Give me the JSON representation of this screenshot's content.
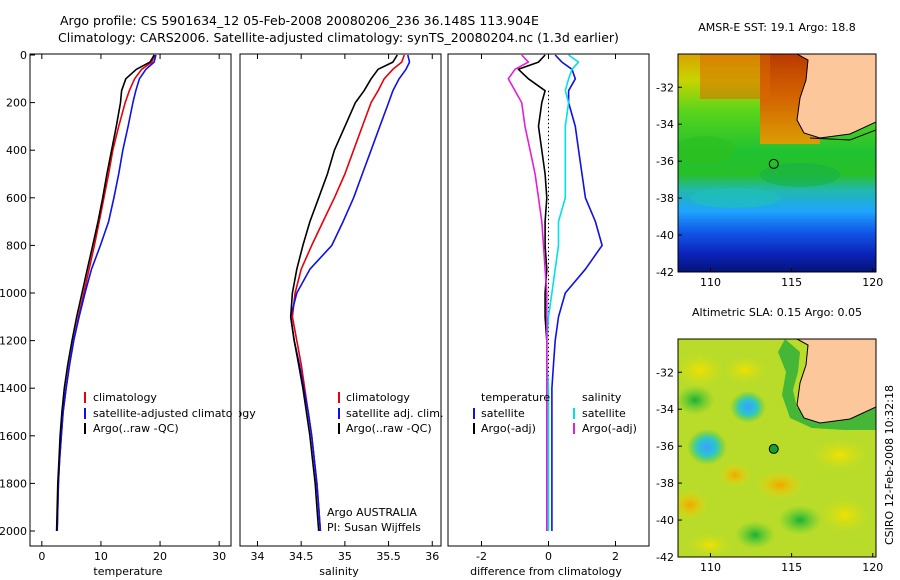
{
  "header": {
    "line1": "Argo profile: CS 5901634_12 05-Feb-2008 20080206_236 36.148S 113.904E",
    "line2": "Climatology: CARS2006. Satellite-adjusted climatology: synTS_20080204.nc (1.3d earlier)"
  },
  "side_text": "CSIRO 12-Feb-2008 10:32:18",
  "chart_data": [
    {
      "type": "line",
      "id": "temperature",
      "xlabel": "temperature",
      "ylabel": "",
      "xlim": [
        -2,
        32
      ],
      "ylim": [
        0,
        2060
      ],
      "y_reversed": true,
      "xticks": [
        0,
        10,
        20,
        30
      ],
      "yticks": [
        0,
        200,
        400,
        600,
        800,
        1000,
        1200,
        1400,
        1600,
        1800,
        2000
      ],
      "series": [
        {
          "name": "climatology",
          "color": "#e8000b",
          "x": [
            19.1,
            18.6,
            16.9,
            15.7,
            14.8,
            14.1,
            13.0,
            12.0,
            11.3,
            10.5,
            9.7,
            8.9,
            8.0,
            7.1,
            6.2,
            5.4,
            4.7,
            4.1,
            3.6,
            3.3,
            3.0,
            2.8,
            2.7,
            2.6
          ],
          "y": [
            0,
            30,
            60,
            100,
            150,
            200,
            300,
            400,
            500,
            600,
            700,
            800,
            900,
            1000,
            1100,
            1200,
            1300,
            1400,
            1500,
            1600,
            1700,
            1800,
            1900,
            2000
          ]
        },
        {
          "name": "satellite-adjusted climatology",
          "color": "#1010e8",
          "x": [
            19.3,
            19.0,
            17.6,
            16.5,
            15.9,
            15.4,
            14.6,
            13.7,
            13.0,
            12.2,
            11.3,
            9.9,
            8.4,
            7.3,
            6.3,
            5.4,
            4.7,
            4.1,
            3.6,
            3.3,
            3.0,
            2.8,
            2.7,
            2.6
          ],
          "y": [
            0,
            30,
            60,
            100,
            150,
            200,
            300,
            400,
            500,
            600,
            700,
            800,
            900,
            1000,
            1100,
            1200,
            1300,
            1400,
            1500,
            1600,
            1700,
            1800,
            1900,
            2000
          ]
        },
        {
          "name": "Argo(..raw -QC)",
          "color": "#000000",
          "x": [
            19.0,
            18.3,
            16.0,
            14.2,
            13.5,
            13.3,
            12.6,
            11.8,
            11.0,
            10.3,
            9.5,
            8.6,
            7.7,
            6.8,
            5.9,
            5.1,
            4.4,
            3.8,
            3.4,
            3.1,
            2.9,
            2.7,
            2.6,
            2.5
          ],
          "y": [
            0,
            30,
            60,
            100,
            150,
            200,
            300,
            400,
            500,
            600,
            700,
            800,
            900,
            1000,
            1100,
            1200,
            1300,
            1400,
            1500,
            1600,
            1700,
            1800,
            1900,
            2000
          ]
        }
      ],
      "legend_position": "bottom-right",
      "legend": [
        "climatology",
        "satellite-adjusted climatology",
        "Argo(..raw -QC)"
      ]
    },
    {
      "type": "line",
      "id": "salinity",
      "xlabel": "salinity",
      "ylabel": "",
      "xlim": [
        33.8,
        36.1
      ],
      "ylim": [
        0,
        2060
      ],
      "y_reversed": true,
      "xticks": [
        34,
        34.5,
        35,
        35.5,
        36
      ],
      "yticks": [],
      "series": [
        {
          "name": "climatology",
          "color": "#e8000b",
          "x": [
            35.68,
            35.65,
            35.55,
            35.45,
            35.38,
            35.3,
            35.2,
            35.1,
            35.0,
            34.88,
            34.75,
            34.62,
            34.5,
            34.43,
            34.4,
            34.45,
            34.5,
            34.54,
            34.58,
            34.62,
            34.65,
            34.68,
            34.7,
            34.72
          ],
          "y": [
            0,
            30,
            60,
            100,
            150,
            200,
            300,
            400,
            500,
            600,
            700,
            800,
            900,
            1000,
            1100,
            1200,
            1300,
            1400,
            1500,
            1600,
            1700,
            1800,
            1900,
            2000
          ]
        },
        {
          "name": "satellite adj. clim.",
          "color": "#1010e8",
          "x": [
            35.72,
            35.74,
            35.7,
            35.62,
            35.55,
            35.5,
            35.4,
            35.3,
            35.2,
            35.1,
            34.98,
            34.85,
            34.6,
            34.45,
            34.38,
            34.42,
            34.48,
            34.53,
            34.58,
            34.62,
            34.65,
            34.68,
            34.7,
            34.72
          ],
          "y": [
            0,
            30,
            60,
            100,
            150,
            200,
            300,
            400,
            500,
            600,
            700,
            800,
            900,
            1000,
            1100,
            1200,
            1300,
            1400,
            1500,
            1600,
            1700,
            1800,
            1900,
            2000
          ]
        },
        {
          "name": "Argo(..raw -QC)",
          "color": "#000000",
          "x": [
            35.6,
            35.55,
            35.38,
            35.3,
            35.22,
            35.12,
            35.0,
            34.88,
            34.8,
            34.7,
            34.6,
            34.52,
            34.45,
            34.4,
            34.38,
            34.42,
            34.47,
            34.52,
            34.56,
            34.6,
            34.63,
            34.66,
            34.68,
            34.7
          ],
          "y": [
            0,
            30,
            60,
            100,
            150,
            200,
            300,
            400,
            500,
            600,
            700,
            800,
            900,
            1000,
            1100,
            1200,
            1300,
            1400,
            1500,
            1600,
            1700,
            1800,
            1900,
            2000
          ]
        }
      ],
      "legend_position": "bottom-right",
      "legend": [
        "climatology",
        "satellite adj. clim.",
        "Argo(..raw -QC)"
      ],
      "annotations": [
        "Argo AUSTRALIA",
        "PI: Susan Wijffels"
      ]
    },
    {
      "type": "line",
      "id": "difference",
      "xlabel": "difference from climatology",
      "ylabel": "",
      "xlim": [
        -3,
        3
      ],
      "ylim": [
        0,
        2060
      ],
      "y_reversed": true,
      "xticks": [
        -2,
        0,
        2
      ],
      "yticks": [],
      "series": [
        {
          "name": "temperature satellite",
          "color": "#1010e8",
          "x": [
            0.2,
            0.4,
            0.7,
            0.8,
            0.6,
            0.6,
            0.8,
            0.9,
            1.0,
            1.1,
            1.4,
            1.6,
            1.1,
            0.5,
            0.3,
            0.2,
            0.15,
            0.1,
            0.1,
            0.1,
            0.1,
            0.1,
            0.1,
            0.1
          ],
          "y": [
            0,
            30,
            60,
            100,
            150,
            200,
            300,
            400,
            500,
            600,
            700,
            800,
            900,
            1000,
            1100,
            1200,
            1300,
            1400,
            1500,
            1600,
            1700,
            1800,
            1900,
            2000
          ]
        },
        {
          "name": "temperature Argo(-adj)",
          "color": "#000000",
          "x": [
            -0.1,
            -0.3,
            -0.9,
            -0.6,
            -0.1,
            -0.2,
            -0.3,
            -0.2,
            -0.1,
            -0.05,
            -0.1,
            -0.1,
            -0.05,
            -0.1,
            -0.1,
            -0.05,
            -0.05,
            -0.05,
            -0.05,
            -0.05,
            -0.05,
            -0.05,
            -0.05,
            -0.05
          ],
          "y": [
            0,
            30,
            60,
            100,
            150,
            200,
            300,
            400,
            500,
            600,
            700,
            800,
            900,
            1000,
            1100,
            1200,
            1300,
            1400,
            1500,
            1600,
            1700,
            1800,
            1900,
            2000
          ]
        },
        {
          "name": "salinity satellite",
          "color": "#00e0e8",
          "x": [
            0.6,
            0.9,
            0.7,
            0.6,
            0.5,
            0.6,
            0.5,
            0.5,
            0.5,
            0.5,
            0.3,
            0.3,
            0.2,
            0.1,
            0.0,
            -0.05,
            -0.05,
            0.0,
            0.0,
            0.0,
            0.0,
            0.0,
            0.0,
            0.0
          ],
          "y": [
            0,
            30,
            60,
            100,
            150,
            200,
            300,
            400,
            500,
            600,
            700,
            800,
            900,
            1000,
            1100,
            1200,
            1300,
            1400,
            1500,
            1600,
            1700,
            1800,
            1900,
            2000
          ]
        },
        {
          "name": "salinity Argo(-adj)",
          "color": "#e020d8",
          "x": [
            -0.8,
            -0.6,
            -1.0,
            -1.2,
            -1.0,
            -0.8,
            -0.7,
            -0.55,
            -0.4,
            -0.3,
            -0.2,
            -0.15,
            -0.1,
            -0.05,
            -0.05,
            -0.05,
            -0.05,
            -0.05,
            -0.05,
            -0.05,
            -0.05,
            -0.05,
            -0.05,
            -0.05
          ],
          "y": [
            0,
            30,
            60,
            100,
            150,
            200,
            300,
            400,
            500,
            600,
            700,
            800,
            900,
            1000,
            1100,
            1200,
            1300,
            1400,
            1500,
            1600,
            1700,
            1800,
            1900,
            2000
          ]
        }
      ],
      "legend_position": "bottom",
      "legend_groups": [
        {
          "title": "temperature",
          "items": [
            {
              "label": "satellite",
              "color": "#1010e8"
            },
            {
              "label": "Argo(-adj)",
              "color": "#000000"
            }
          ]
        },
        {
          "title": "salinity",
          "items": [
            {
              "label": "satellite",
              "color": "#00e0e8"
            },
            {
              "label": "Argo(-adj)",
              "color": "#e020d8"
            }
          ]
        }
      ]
    },
    {
      "type": "heatmap",
      "id": "sst-map",
      "title": "AMSR-E SST: 19.1 Argo: 18.8",
      "xlim": [
        108,
        120.2
      ],
      "ylim": [
        -42,
        -30.2
      ],
      "xticks": [
        110,
        115,
        120
      ],
      "yticks": [
        -32,
        -34,
        -36,
        -38,
        -40,
        -42
      ],
      "float_position": {
        "lon": 113.9,
        "lat": -36.15
      }
    },
    {
      "type": "heatmap",
      "id": "sla-map",
      "title": "Altimetric SLA: 0.15 Argo: 0.05",
      "xlim": [
        108,
        120.2
      ],
      "ylim": [
        -42,
        -30.2
      ],
      "xticks": [
        110,
        115,
        120
      ],
      "yticks": [
        -32,
        -34,
        -36,
        -38,
        -40,
        -42
      ],
      "float_position": {
        "lon": 113.9,
        "lat": -36.15
      }
    }
  ]
}
